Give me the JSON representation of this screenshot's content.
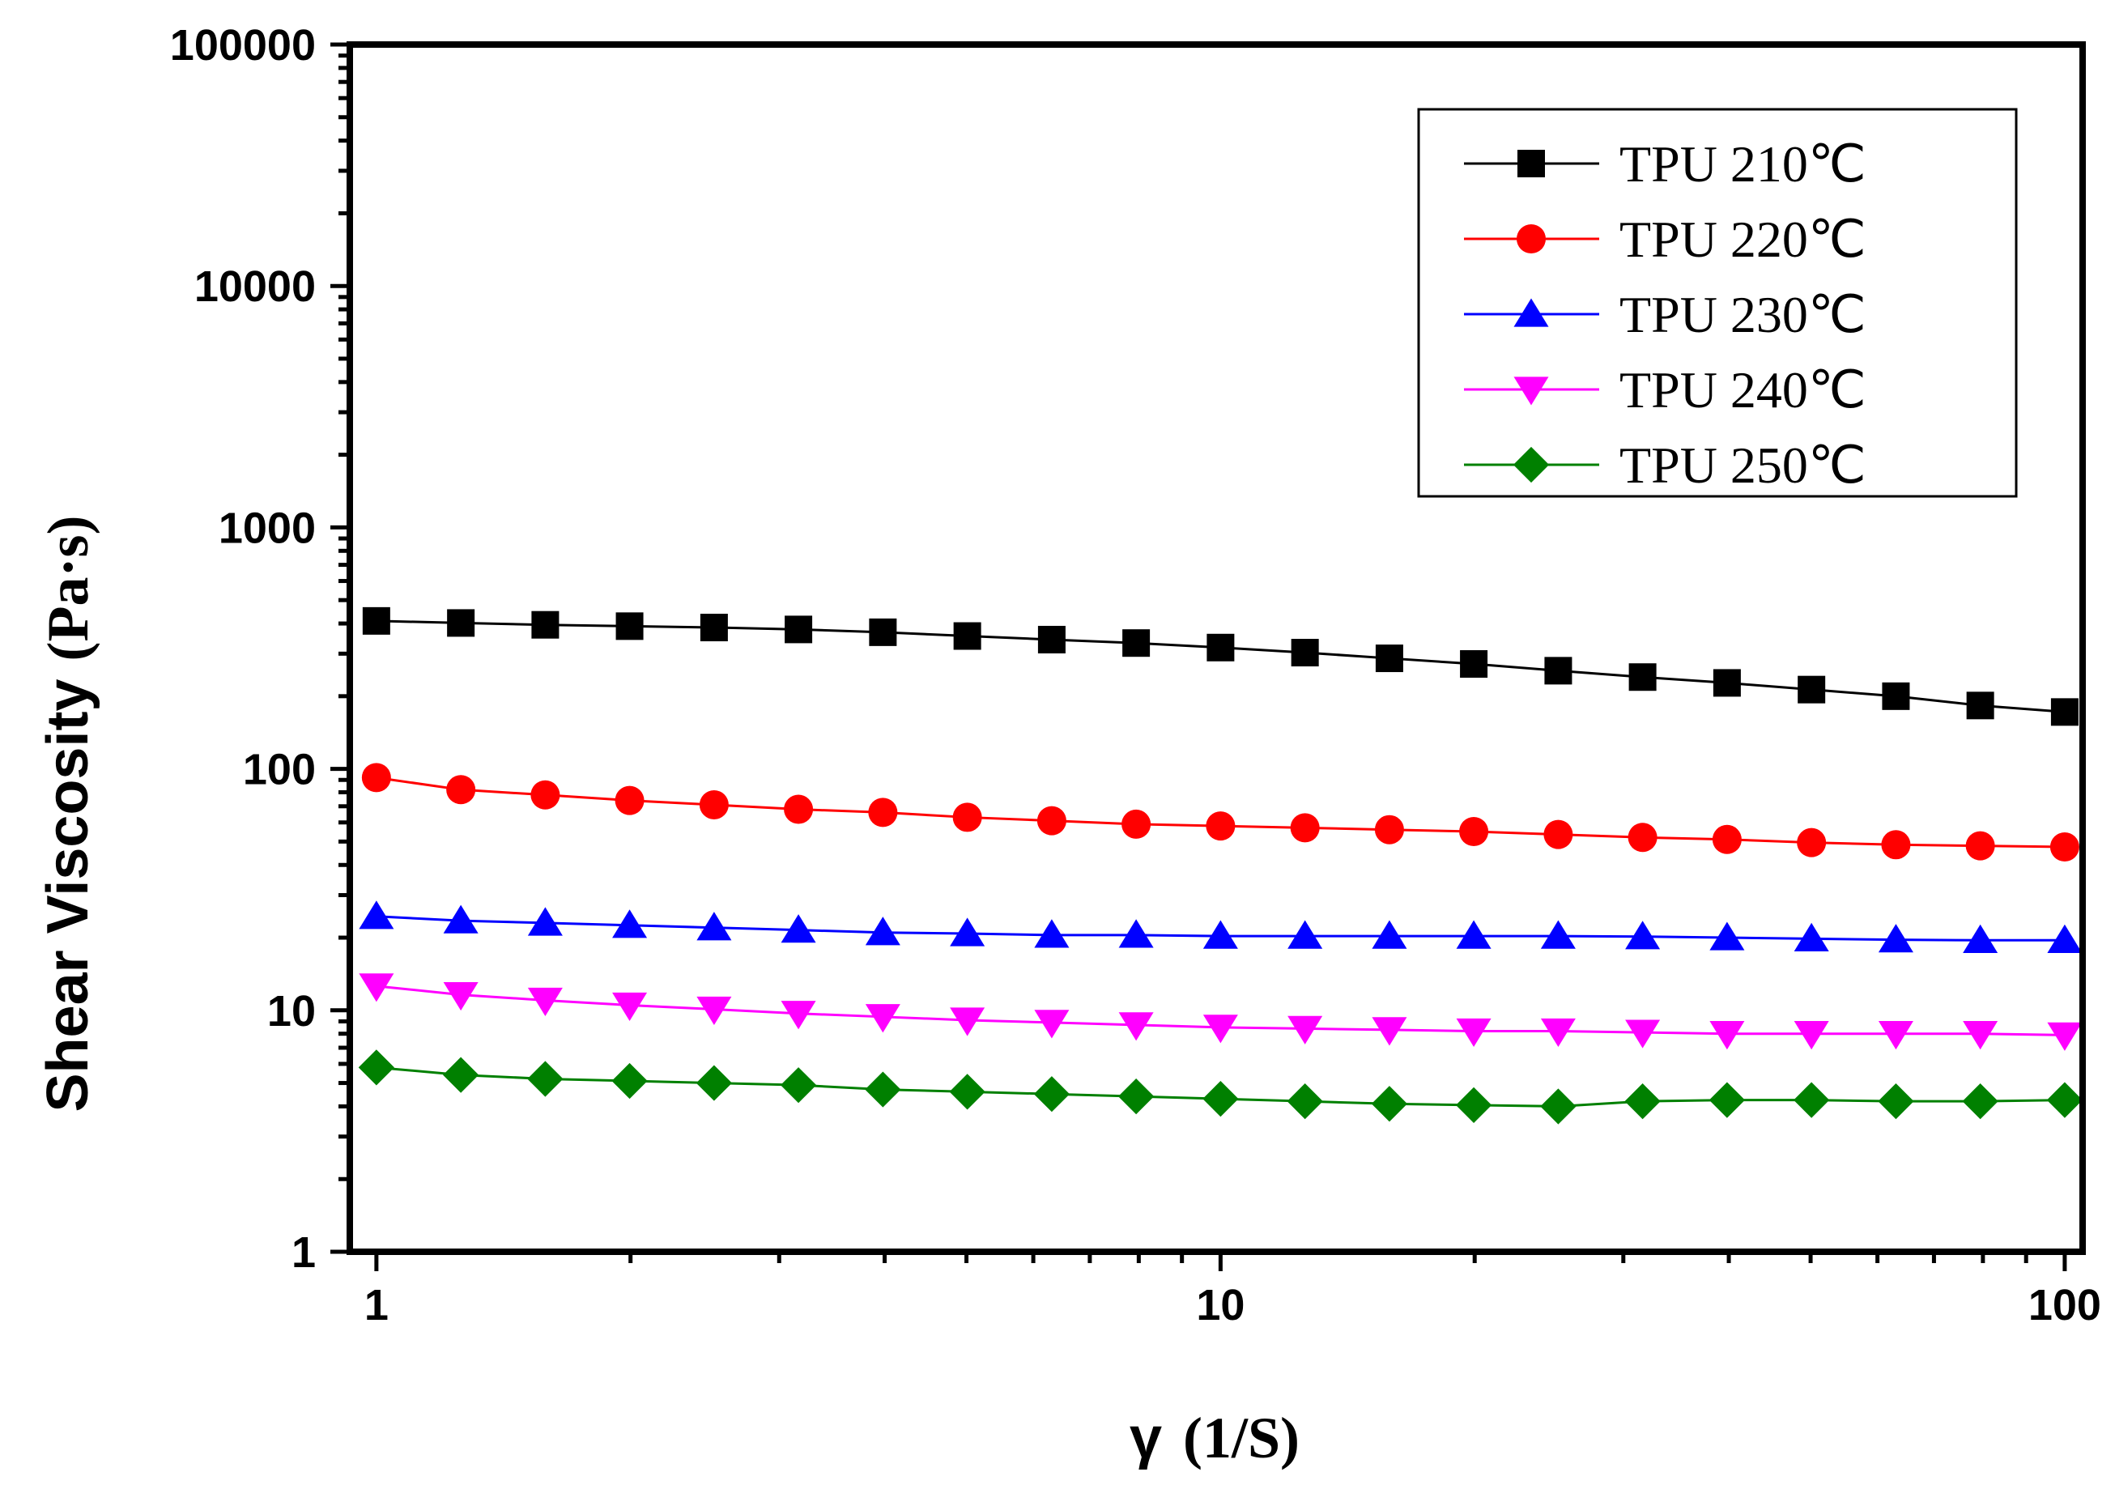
{
  "chart_data": {
    "type": "line",
    "x_scale": "log",
    "y_scale": "log",
    "xlabel": "γ",
    "xlabel_unit": "(1/S)",
    "ylabel": "Shear Viscosity",
    "ylabel_unit": "(Pa·s)",
    "xlim": [
      0.93,
      105
    ],
    "ylim": [
      1,
      100000
    ],
    "x_ticks": [
      1,
      10,
      100
    ],
    "x_tick_labels": [
      "1",
      "10",
      "100"
    ],
    "y_ticks": [
      1,
      10,
      100,
      1000,
      10000,
      100000
    ],
    "y_tick_labels": [
      "1",
      "10",
      "100",
      "1000",
      "10000",
      "100000"
    ],
    "legend_position": "top-right",
    "x": [
      1,
      1.259,
      1.585,
      1.995,
      2.512,
      3.162,
      3.981,
      5.012,
      6.31,
      7.943,
      10,
      12.59,
      15.85,
      19.95,
      25.12,
      31.62,
      39.81,
      50.12,
      63.1,
      79.43,
      100
    ],
    "series": [
      {
        "name": "TPU 210℃",
        "color": "#000000",
        "marker": "square",
        "values": [
          410,
          402,
          395,
          390,
          385,
          378,
          368,
          355,
          343,
          332,
          318,
          303,
          287,
          272,
          255,
          240,
          227,
          213,
          200,
          183,
          172
        ]
      },
      {
        "name": "TPU 220℃",
        "color": "#ff0000",
        "marker": "circle",
        "values": [
          92,
          82,
          78,
          74,
          71,
          68,
          66,
          63,
          61,
          59,
          58,
          57,
          56,
          55,
          53.5,
          52,
          51,
          49.5,
          48.5,
          48,
          47.5
        ]
      },
      {
        "name": "TPU 230℃",
        "color": "#0000ff",
        "marker": "triangle-up",
        "values": [
          24.5,
          23.5,
          23,
          22.5,
          22,
          21.5,
          21,
          20.8,
          20.5,
          20.5,
          20.3,
          20.3,
          20.3,
          20.3,
          20.3,
          20.2,
          20,
          19.8,
          19.6,
          19.5,
          19.5
        ]
      },
      {
        "name": "TPU 240℃",
        "color": "#ff00ff",
        "marker": "triangle-down",
        "values": [
          12.6,
          11.6,
          11,
          10.5,
          10.1,
          9.7,
          9.4,
          9.1,
          8.9,
          8.7,
          8.5,
          8.4,
          8.3,
          8.2,
          8.2,
          8.1,
          8,
          8,
          8,
          8,
          7.9
        ]
      },
      {
        "name": "TPU 250℃",
        "color": "#008000",
        "marker": "diamond",
        "values": [
          5.8,
          5.4,
          5.2,
          5.1,
          5.0,
          4.9,
          4.7,
          4.6,
          4.5,
          4.4,
          4.3,
          4.2,
          4.1,
          4.05,
          4.0,
          4.2,
          4.25,
          4.25,
          4.2,
          4.2,
          4.25
        ]
      }
    ]
  }
}
